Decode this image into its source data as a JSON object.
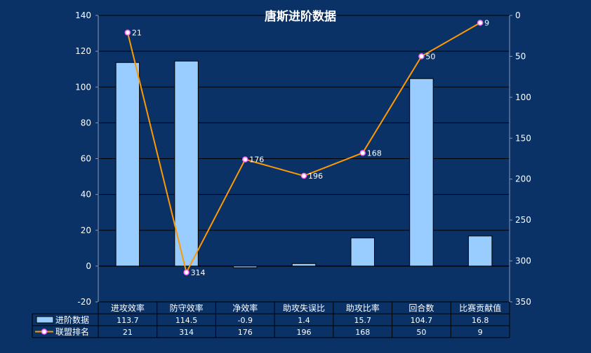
{
  "chart_data": {
    "type": "bar+line",
    "title": "唐斯进阶数据",
    "categories": [
      "进攻效率",
      "防守效率",
      "净效率",
      "助攻失误比",
      "助攻比率",
      "回合数",
      "比赛贡献值"
    ],
    "series": [
      {
        "name": "进阶数据",
        "type": "bar",
        "axis": "left",
        "values": [
          113.7,
          114.5,
          -0.9,
          1.4,
          15.7,
          104.7,
          16.8
        ],
        "display": [
          "113.7",
          "114.5",
          "-0.9",
          "1.4",
          "15.7",
          "104.7",
          "16.8"
        ],
        "color": "#99ccff"
      },
      {
        "name": "联盟排名",
        "type": "line",
        "axis": "right",
        "values": [
          21,
          314,
          176,
          196,
          168,
          50,
          9
        ],
        "display": [
          "21",
          "314",
          "176",
          "196",
          "168",
          "50",
          "9"
        ],
        "color": "#ff9900",
        "marker_color": "#ff66ff"
      }
    ],
    "y_left": {
      "min": -20,
      "max": 140,
      "ticks": [
        140,
        120,
        100,
        80,
        60,
        40,
        20,
        0,
        -20
      ]
    },
    "y_right": {
      "min": 0,
      "max": 350,
      "reversed": true,
      "ticks": [
        0,
        50,
        100,
        150,
        200,
        250,
        300,
        350
      ]
    },
    "grid": true,
    "legend": "data-table-bottom",
    "colors": {
      "background": "#0a3266",
      "grid": "#000000",
      "text": "#ffffff"
    }
  }
}
